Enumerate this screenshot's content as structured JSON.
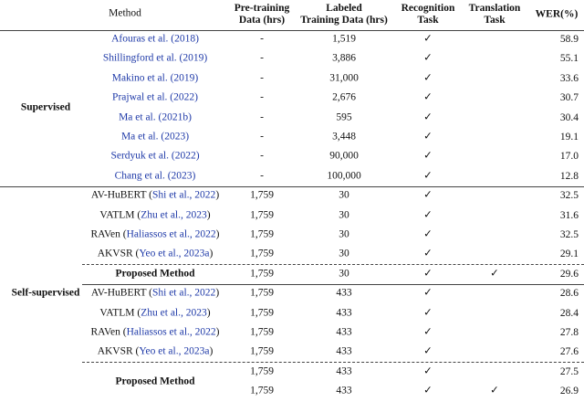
{
  "table": {
    "header": [
      "Method",
      "Pre-training\nData (hrs)",
      "Labeled\nTraining Data (hrs)",
      "Recognition\nTask",
      "Translation\nTask",
      "WER(%)"
    ],
    "groups": [
      {
        "label": "Supervised",
        "rows": [
          {
            "method": [
              {
                "text": "Afouras et al. (2018)",
                "cite": true
              }
            ],
            "pre": "-",
            "labeled": "1,519",
            "rec": "✓",
            "trans": null,
            "wer": "58.9"
          },
          {
            "method": [
              {
                "text": "Shillingford et al. (2019)",
                "cite": true
              }
            ],
            "pre": "-",
            "labeled": "3,886",
            "rec": "✓",
            "trans": null,
            "wer": "55.1"
          },
          {
            "method": [
              {
                "text": "Makino et al. (2019)",
                "cite": true
              }
            ],
            "pre": "-",
            "labeled": "31,000",
            "rec": "✓",
            "trans": null,
            "wer": "33.6"
          },
          {
            "method": [
              {
                "text": "Prajwal et al. (2022)",
                "cite": true
              }
            ],
            "pre": "-",
            "labeled": "2,676",
            "rec": "✓",
            "trans": null,
            "wer": "30.7"
          },
          {
            "method": [
              {
                "text": "Ma et al. (2021b)",
                "cite": true
              }
            ],
            "pre": "-",
            "labeled": "595",
            "rec": "✓",
            "trans": null,
            "wer": "30.4"
          },
          {
            "method": [
              {
                "text": "Ma et al. (2023)",
                "cite": true
              }
            ],
            "pre": "-",
            "labeled": "3,448",
            "rec": "✓",
            "trans": null,
            "wer": "19.1"
          },
          {
            "method": [
              {
                "text": "Serdyuk et al. (2022)",
                "cite": true
              }
            ],
            "pre": "-",
            "labeled": "90,000",
            "rec": "✓",
            "trans": null,
            "wer": "17.0"
          },
          {
            "method": [
              {
                "text": "Chang et al. (2023)",
                "cite": true
              }
            ],
            "pre": "-",
            "labeled": "100,000",
            "rec": "✓",
            "trans": null,
            "wer": "12.8"
          }
        ]
      },
      {
        "label": "Self-supervised",
        "rows": [
          {
            "method": [
              {
                "text": "AV-HuBERT ("
              },
              {
                "text": "Shi et al., 2022",
                "cite": true
              },
              {
                "text": ")"
              }
            ],
            "pre": "1,759",
            "labeled": "30",
            "rec": "✓",
            "trans": null,
            "wer": "32.5"
          },
          {
            "method": [
              {
                "text": "VATLM ("
              },
              {
                "text": "Zhu et al., 2023",
                "cite": true
              },
              {
                "text": ")"
              }
            ],
            "pre": "1,759",
            "labeled": "30",
            "rec": "✓",
            "trans": null,
            "wer": "31.6"
          },
          {
            "method": [
              {
                "text": "RAVen ("
              },
              {
                "text": "Haliassos et al., 2022",
                "cite": true
              },
              {
                "text": ")"
              }
            ],
            "pre": "1,759",
            "labeled": "30",
            "rec": "✓",
            "trans": null,
            "wer": "32.5"
          },
          {
            "method": [
              {
                "text": "AKVSR ("
              },
              {
                "text": "Yeo et al., 2023a",
                "cite": true
              },
              {
                "text": ")"
              }
            ],
            "pre": "1,759",
            "labeled": "30",
            "rec": "✓",
            "trans": null,
            "wer": "29.1"
          },
          {
            "method": [
              {
                "text": "Proposed Method"
              }
            ],
            "bold": true,
            "pre": "1,759",
            "labeled": "30",
            "rec": "✓",
            "trans": "✓",
            "wer": "29.6"
          },
          {
            "method": [
              {
                "text": "AV-HuBERT ("
              },
              {
                "text": "Shi et al., 2022",
                "cite": true
              },
              {
                "text": ")"
              }
            ],
            "pre": "1,759",
            "labeled": "433",
            "rec": "✓",
            "trans": null,
            "wer": "28.6"
          },
          {
            "method": [
              {
                "text": "VATLM ("
              },
              {
                "text": "Zhu et al., 2023",
                "cite": true
              },
              {
                "text": ")"
              }
            ],
            "pre": "1,759",
            "labeled": "433",
            "rec": "✓",
            "trans": null,
            "wer": "28.4"
          },
          {
            "method": [
              {
                "text": "RAVen ("
              },
              {
                "text": "Haliassos et al., 2022",
                "cite": true
              },
              {
                "text": ")"
              }
            ],
            "pre": "1,759",
            "labeled": "433",
            "rec": "✓",
            "trans": null,
            "wer": "27.8"
          },
          {
            "method": [
              {
                "text": "AKVSR ("
              },
              {
                "text": "Yeo et al., 2023a",
                "cite": true
              },
              {
                "text": ")"
              }
            ],
            "pre": "1,759",
            "labeled": "433",
            "rec": "✓",
            "trans": null,
            "wer": "27.6"
          },
          {
            "method": [
              {
                "text": "Proposed Method"
              }
            ],
            "bold": true,
            "pre": "1,759",
            "labeled": "433",
            "rec": "✓",
            "trans": null,
            "wer": "27.5"
          },
          {
            "method": null,
            "bold": true,
            "pre": "1,759",
            "labeled": "433",
            "rec": "✓",
            "trans": "✓",
            "wer": "26.9"
          }
        ]
      }
    ]
  }
}
